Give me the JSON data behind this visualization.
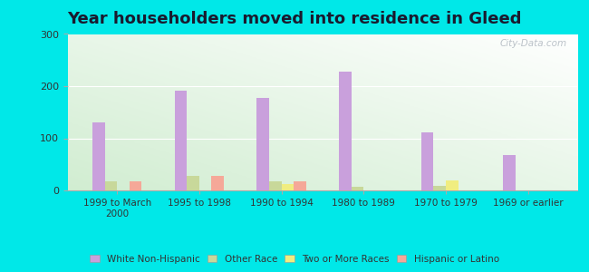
{
  "title": "Year householders moved into residence in Gleed",
  "categories": [
    "1999 to March\n2000",
    "1995 to 1998",
    "1990 to 1994",
    "1980 to 1989",
    "1970 to 1979",
    "1969 or earlier"
  ],
  "series": {
    "White Non-Hispanic": [
      130,
      192,
      178,
      228,
      112,
      68
    ],
    "Other Race": [
      17,
      28,
      17,
      7,
      8,
      0
    ],
    "Two or More Races": [
      0,
      0,
      12,
      0,
      20,
      0
    ],
    "Hispanic or Latino": [
      18,
      28,
      18,
      0,
      0,
      0
    ]
  },
  "colors": {
    "White Non-Hispanic": "#c9a0dc",
    "Other Race": "#c8d89a",
    "Two or More Races": "#f0ed80",
    "Hispanic or Latino": "#f5a898"
  },
  "ylim": [
    0,
    300
  ],
  "yticks": [
    0,
    100,
    200,
    300
  ],
  "bar_width": 0.15,
  "outer_bg": "#00e8e8",
  "watermark": "City-Data.com",
  "title_fontsize": 13
}
